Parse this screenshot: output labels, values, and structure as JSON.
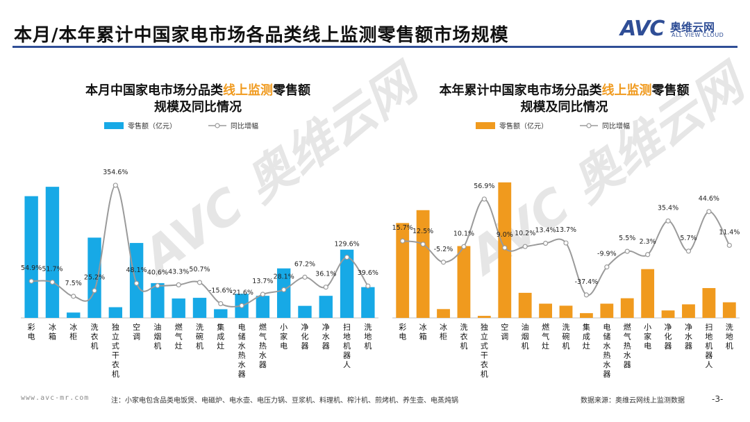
{
  "header": {
    "title": "本月/本年累计中国家电市场各品类线上监测零售额市场规模",
    "logo_avc": "AVC",
    "logo_cn": "奥维云网",
    "logo_en": "ALL VIEW CLOUD",
    "watermark_text": "AVC 奥维云网"
  },
  "footer": {
    "url": "www.avc-mr.com",
    "note": "注：小家电包含品类电饭煲、电磁炉、电水壶、电压力锅、豆浆机、料理机、榨汁机、煎烤机、养生壶、电蒸炖锅",
    "source": "数据来源：奥维云网线上监测数据",
    "page": "-3-"
  },
  "colors": {
    "bar_left": "#17a9e6",
    "bar_right": "#f09a1e",
    "line": "#9a9a9a",
    "highlight": "#f09a1e"
  },
  "chart_data": [
    {
      "type": "bar",
      "title": [
        "本月中国家电市场分品类",
        "线上监测",
        "零售额"
      ],
      "title_line2": "规模及同比情况",
      "legend": {
        "bar": "零售额（亿元）",
        "line": "同比增幅",
        "position": "top"
      },
      "categories": [
        "彩电",
        "冰箱",
        "冰柜",
        "洗衣机",
        "独立式干衣机",
        "空调",
        "油烟机",
        "燃气灶",
        "洗碗机",
        "集成灶",
        "电储水热水器",
        "燃气热水器",
        "小家电",
        "净化器",
        "净水器",
        "扫地机器人",
        "洗地机"
      ],
      "series": [
        {
          "name": "零售额（亿元）",
          "kind": "bar",
          "values": [
            18.2,
            19.6,
            0.8,
            12.0,
            1.6,
            11.2,
            5.2,
            2.9,
            3.0,
            1.3,
            3.6,
            3.3,
            7.4,
            1.8,
            3.3,
            10.2,
            4.6
          ]
        },
        {
          "name": "同比增幅",
          "kind": "line",
          "values": [
            54.9,
            51.7,
            7.5,
            25.2,
            354.6,
            48.1,
            40.6,
            43.3,
            50.7,
            -15.6,
            -21.6,
            13.7,
            28.1,
            67.2,
            36.1,
            129.6,
            39.6
          ],
          "labels": [
            "54.9%",
            "51.7%",
            "7.5%",
            "25.2%",
            "354.6%",
            "48.1%",
            "40.6%",
            "43.3%",
            "50.7%",
            "-15.6%",
            "-21.6%",
            "13.7%",
            "28.1%",
            "67.2%",
            "36.1%",
            "129.6%",
            "39.6%"
          ]
        }
      ],
      "ylim_bar": [
        0,
        22
      ],
      "ylim_line": [
        -60,
        400
      ]
    },
    {
      "type": "bar",
      "title": [
        "本年累计中国家电市场分品类",
        "线上监测",
        "零售额"
      ],
      "title_line2": "规模及同比情况",
      "legend": {
        "bar": "零售额（亿元）",
        "line": "同比增幅",
        "position": "top"
      },
      "categories": [
        "彩电",
        "冰箱",
        "冰柜",
        "洗衣机",
        "独立式干衣机",
        "空调",
        "油烟机",
        "燃气灶",
        "洗碗机",
        "集成灶",
        "电储水热水器",
        "燃气热水器",
        "小家电",
        "净化器",
        "净水器",
        "扫地机器人",
        "洗地机"
      ],
      "series": [
        {
          "name": "零售额（亿元）",
          "kind": "bar",
          "values": [
            140,
            159,
            13,
            106,
            3,
            200,
            37,
            21,
            18,
            7,
            21,
            29,
            72,
            11,
            20,
            44,
            23
          ]
        },
        {
          "name": "同比增幅",
          "kind": "line",
          "values": [
            15.7,
            12.5,
            -5.2,
            10.1,
            56.9,
            9.0,
            10.2,
            13.4,
            13.7,
            -37.4,
            -9.9,
            5.5,
            2.3,
            35.4,
            5.7,
            44.6,
            11.4
          ],
          "labels": [
            "15.7%",
            "12.5%",
            "-5.2%",
            "10.1%",
            "56.9%",
            "9.0%",
            "10.2%",
            "13.4%",
            "13.7%",
            "-37.4%",
            "-9.9%",
            "5.5%",
            "2.3%",
            "35.4%",
            "5.7%",
            "44.6%",
            "11.4%"
          ]
        }
      ],
      "ylim_bar": [
        0,
        210
      ],
      "ylim_line": [
        -60,
        80
      ]
    }
  ]
}
